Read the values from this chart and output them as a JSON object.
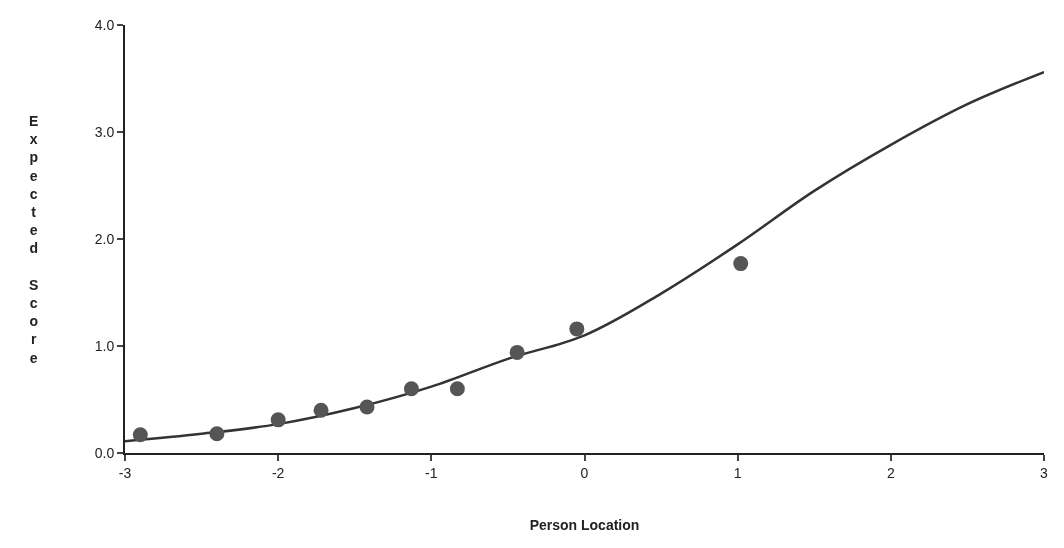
{
  "chart_data": {
    "type": "scatter",
    "xlabel": "Person Location",
    "ylabel": "Expected Score",
    "xlim": [
      -3,
      3
    ],
    "xticks": [
      -3,
      -2,
      -1,
      0,
      1,
      2,
      3
    ],
    "ylim": [
      0,
      4
    ],
    "yticks": [
      {
        "value": 0,
        "label": "0.0"
      },
      {
        "value": 1,
        "label": "1.0"
      },
      {
        "value": 2,
        "label": "2.0"
      },
      {
        "value": 3,
        "label": "3.0"
      },
      {
        "value": 4,
        "label": "4.0"
      }
    ],
    "marker": "circle",
    "series": [
      {
        "type": "line",
        "marker": "none",
        "color": "#333333",
        "x": [
          -3,
          -2.5,
          -2,
          -1.5,
          -1,
          -0.5,
          0,
          0.5,
          1,
          1.5,
          2,
          2.5,
          3
        ],
        "values": [
          0.11,
          0.18,
          0.27,
          0.42,
          0.62,
          0.88,
          1.1,
          1.49,
          1.95,
          2.45,
          2.88,
          3.26,
          3.56
        ]
      },
      {
        "color": "#555555",
        "x": [
          -2.9,
          -2.4,
          -2.0,
          -1.72,
          -1.42,
          -1.13,
          -0.83,
          -0.44,
          -0.05,
          1.02
        ],
        "values": [
          0.17,
          0.18,
          0.31,
          0.4,
          0.43,
          0.6,
          0.6,
          0.94,
          1.16,
          1.77
        ]
      }
    ]
  }
}
